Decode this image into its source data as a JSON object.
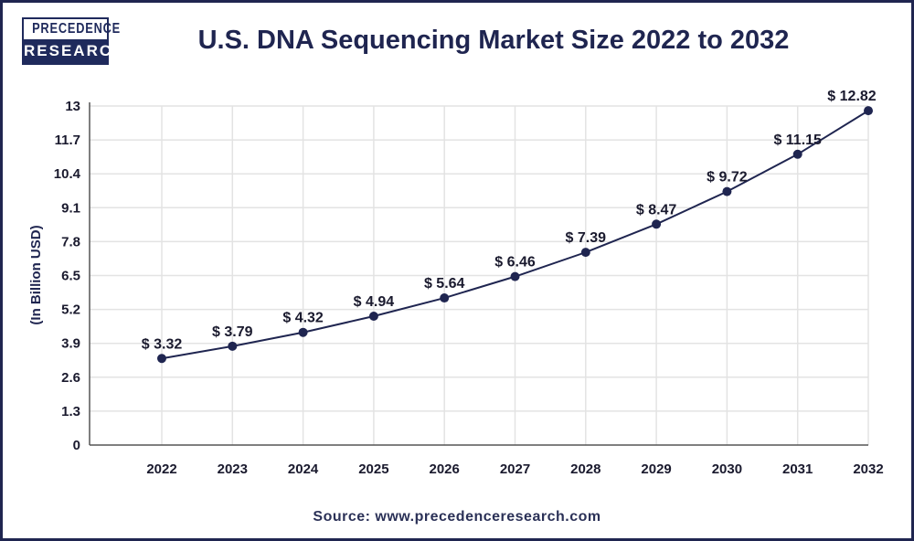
{
  "logo": {
    "line1": "PRECEDENCE",
    "line2": "RESEARCH"
  },
  "source": "Source: www.precedenceresearch.com",
  "colors": {
    "line": "#1f2550",
    "grid": "#e3e3e3",
    "border": "#1f2550"
  },
  "chart_data": {
    "type": "line",
    "title": "U.S. DNA Sequencing Market Size 2022 to 2032",
    "xlabel": "",
    "ylabel": "(In Billion USD)",
    "categories": [
      "2022",
      "2023",
      "2024",
      "2025",
      "2026",
      "2027",
      "2028",
      "2029",
      "2030",
      "2031",
      "2032"
    ],
    "values": [
      3.32,
      3.79,
      4.32,
      4.94,
      5.64,
      6.46,
      7.39,
      8.47,
      9.72,
      11.15,
      12.82
    ],
    "data_labels": [
      "$ 3.32",
      "$ 3.79",
      "$ 4.32",
      "$ 4.94",
      "$ 5.64",
      "$ 6.46",
      "$ 7.39",
      "$ 8.47",
      "$ 9.72",
      "$ 11.15",
      "$ 12.82"
    ],
    "yticks": [
      "0",
      "1.3",
      "2.6",
      "3.9",
      "5.2",
      "6.5",
      "7.8",
      "9.1",
      "10.4",
      "11.7",
      "13"
    ],
    "ylim": [
      0,
      13
    ],
    "grid": true,
    "legend": "none"
  }
}
